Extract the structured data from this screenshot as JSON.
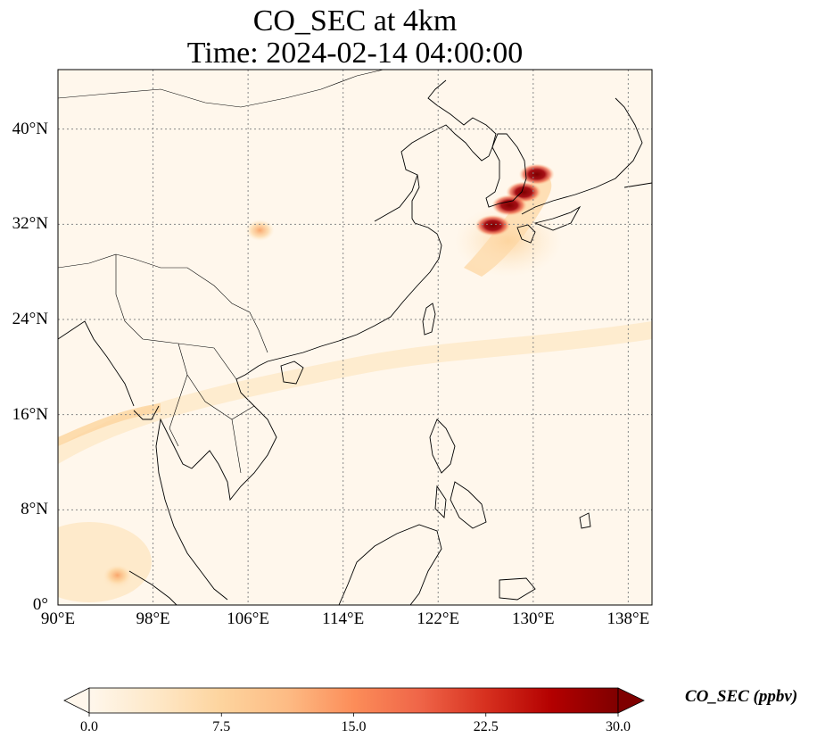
{
  "title": {
    "line1": "CO_SEC at 4km",
    "line2": "Time: 2024-02-14 04:00:00"
  },
  "chart_data": {
    "type": "heatmap",
    "projection": "plate-carree",
    "variable": "CO_SEC",
    "height": "4km",
    "time": "2024-02-14 04:00:00",
    "lon_range": [
      90,
      140
    ],
    "lat_range": [
      0,
      45
    ],
    "grid": true,
    "grid_style": "dotted",
    "x_ticks": [
      {
        "value": 90,
        "label": "90°E"
      },
      {
        "value": 98,
        "label": "98°E"
      },
      {
        "value": 106,
        "label": "106°E"
      },
      {
        "value": 114,
        "label": "114°E"
      },
      {
        "value": 122,
        "label": "122°E"
      },
      {
        "value": 130,
        "label": "130°E"
      },
      {
        "value": 138,
        "label": "138°E"
      }
    ],
    "y_ticks": [
      {
        "value": 0,
        "label": "0°"
      },
      {
        "value": 8,
        "label": "8°N"
      },
      {
        "value": 16,
        "label": "16°N"
      },
      {
        "value": 24,
        "label": "24°N"
      },
      {
        "value": 32,
        "label": "32°N"
      },
      {
        "value": 40,
        "label": "40°N"
      }
    ],
    "colorbar": {
      "label": "CO_SEC (ppbv)",
      "cmap": "OrRd",
      "min": 0.0,
      "max": 30.0,
      "extend": "both",
      "ticks": [
        "0.0",
        "7.5",
        "15.0",
        "22.5",
        "30.0"
      ],
      "colors": [
        "#fff7ec",
        "#fee8c8",
        "#fdd49e",
        "#fdbb84",
        "#fc8d59",
        "#ef6548",
        "#d7301f",
        "#b30000",
        "#7f0000"
      ]
    },
    "hotspots": [
      {
        "lon": 130.3,
        "lat": 36.2,
        "value": 30
      },
      {
        "lon": 129.2,
        "lat": 34.7,
        "value": 30
      },
      {
        "lon": 128.0,
        "lat": 33.6,
        "value": 30
      },
      {
        "lon": 126.6,
        "lat": 31.9,
        "value": 30
      },
      {
        "lon": 107.0,
        "lat": 31.5,
        "value": 8
      },
      {
        "lon": 95.0,
        "lat": 2.5,
        "value": 8
      }
    ]
  }
}
